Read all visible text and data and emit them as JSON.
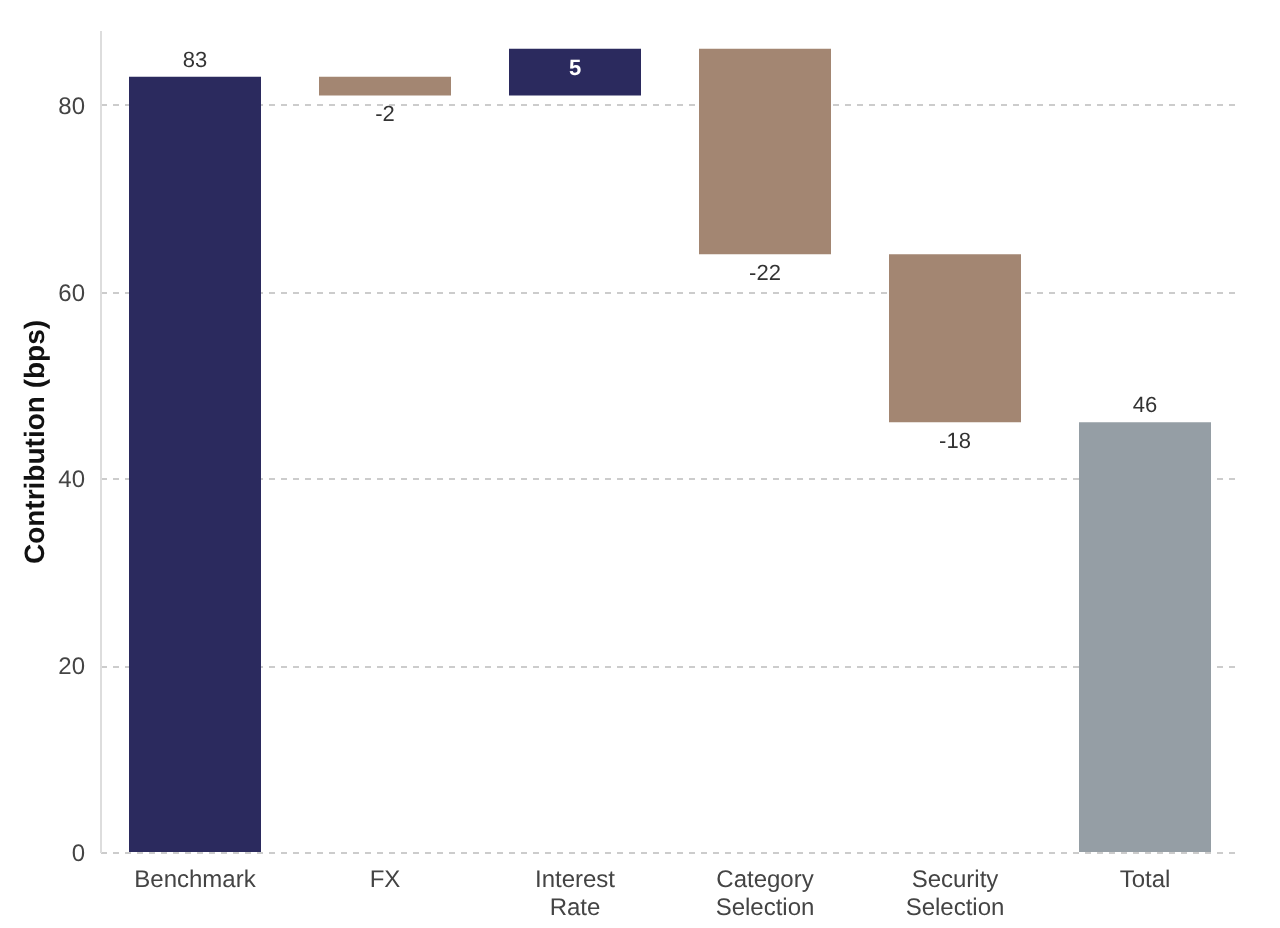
{
  "chart_data": {
    "type": "bar",
    "ylabel": "Contribution (bps)",
    "categories": [
      "Benchmark",
      "FX",
      "Interest Rate",
      "Category Selection",
      "Security Selection",
      "Total"
    ],
    "values": [
      83,
      -2,
      5,
      -22,
      -18,
      46
    ],
    "base": [
      0,
      83,
      81,
      86,
      64,
      0
    ],
    "colors": [
      "#2b2a5e",
      "#a38672",
      "#2b2a5e",
      "#a38672",
      "#a38672",
      "#959ea5"
    ],
    "ylim": [
      0,
      88
    ],
    "yticks": [
      0,
      20,
      40,
      60,
      80
    ],
    "grid": "y",
    "data_labels": true
  }
}
